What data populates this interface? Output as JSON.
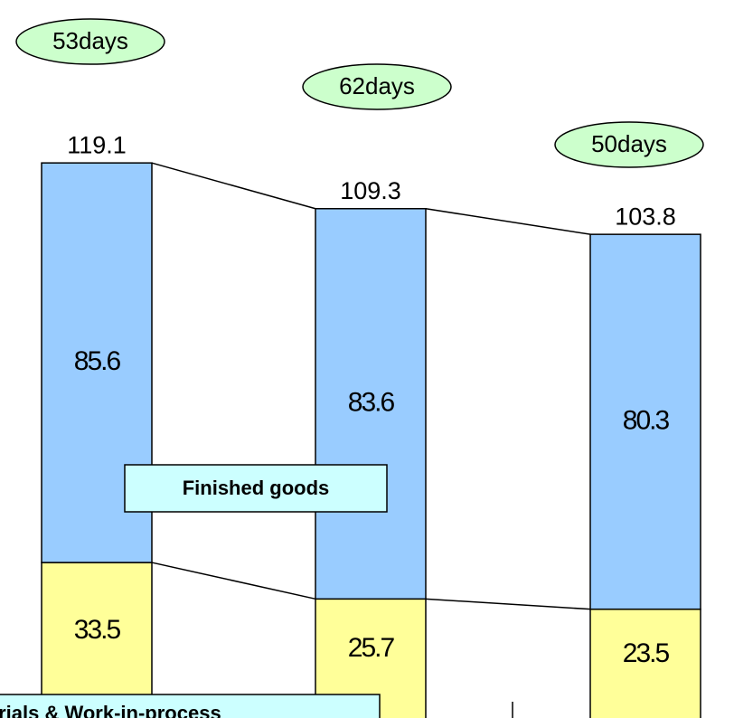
{
  "chart_data": {
    "type": "stacked_bar",
    "categories": [
      null,
      null,
      null
    ],
    "series": [
      {
        "name": "Materials & Work-in-process",
        "color": "#ffff99",
        "values": [
          33.5,
          25.7,
          23.5
        ]
      },
      {
        "name": "Finished goods",
        "color": "#99ccff",
        "values": [
          85.6,
          83.6,
          80.3
        ]
      }
    ],
    "totals": [
      119.1,
      109.3,
      103.8
    ],
    "annotations": [
      "53days",
      "62days",
      "50days"
    ],
    "ylim": [
      0,
      154
    ]
  }
}
